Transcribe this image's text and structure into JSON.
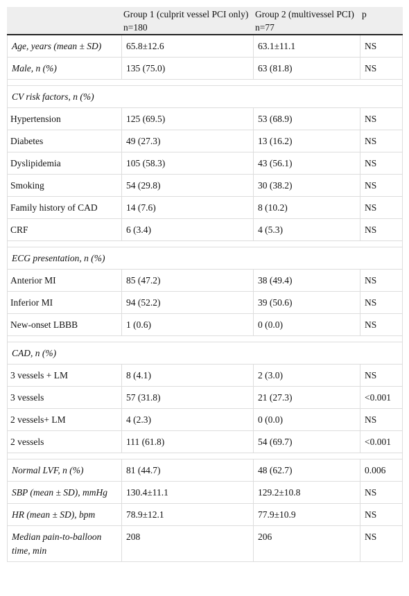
{
  "table": {
    "header": [
      "Group 1 (culprit vessel PCI only) n=180",
      "Group 2 (multivessel PCI) n=77",
      "p"
    ],
    "groups": [
      {
        "rows": [
          [
            "Age, years (mean ± SD)",
            "65.8±12.6",
            "63.1±11.1",
            "NS"
          ],
          [
            "Male, n (%)",
            "135 (75.0)",
            "63 (81.8)",
            "NS"
          ]
        ]
      },
      {
        "title": "CV risk factors, n (%)",
        "rows": [
          [
            "Hypertension",
            "125 (69.5)",
            "53 (68.9)",
            "NS"
          ],
          [
            "Diabetes",
            "49 (27.3)",
            "13 (16.2)",
            "NS"
          ],
          [
            "Dyslipidemia",
            "105 (58.3)",
            "43 (56.1)",
            "NS"
          ],
          [
            "Smoking",
            "54 (29.8)",
            "30 (38.2)",
            "NS"
          ],
          [
            "Family history of CAD",
            "14 (7.6)",
            "8 (10.2)",
            "NS"
          ],
          [
            "CRF",
            "6 (3.4)",
            "4 (5.3)",
            "NS"
          ]
        ]
      },
      {
        "title": "ECG presentation, n (%)",
        "rows": [
          [
            "Anterior MI",
            "85 (47.2)",
            "38 (49.4)",
            "NS"
          ],
          [
            "Inferior MI",
            "94 (52.2)",
            "39 (50.6)",
            "NS"
          ],
          [
            "New-onset LBBB",
            "1 (0.6)",
            "0 (0.0)",
            "NS"
          ]
        ]
      },
      {
        "title": "CAD, n (%)",
        "rows": [
          [
            "3 vessels + LM",
            "8 (4.1)",
            "2 (3.0)",
            "NS"
          ],
          [
            "3 vessels",
            "57 (31.8)",
            "21 (27.3)",
            "<0.001"
          ],
          [
            "2 vessels+ LM",
            "4 (2.3)",
            "0 (0.0)",
            "NS"
          ],
          [
            "2 vessels",
            "111 (61.8)",
            "54 (69.7)",
            "<0.001"
          ]
        ]
      },
      {
        "rows": [
          [
            "Normal LVF, n (%)",
            "81 (44.7)",
            "48 (62.7)",
            "0.006"
          ],
          [
            "SBP (mean ± SD), mmHg",
            "130.4±11.1",
            "129.2±10.8",
            "NS"
          ],
          [
            "HR (mean ± SD), bpm",
            "78.9±12.1",
            "77.9±10.9",
            "NS"
          ],
          [
            "Median pain-to-balloon time, min",
            "208",
            "206",
            "NS"
          ]
        ]
      }
    ]
  }
}
